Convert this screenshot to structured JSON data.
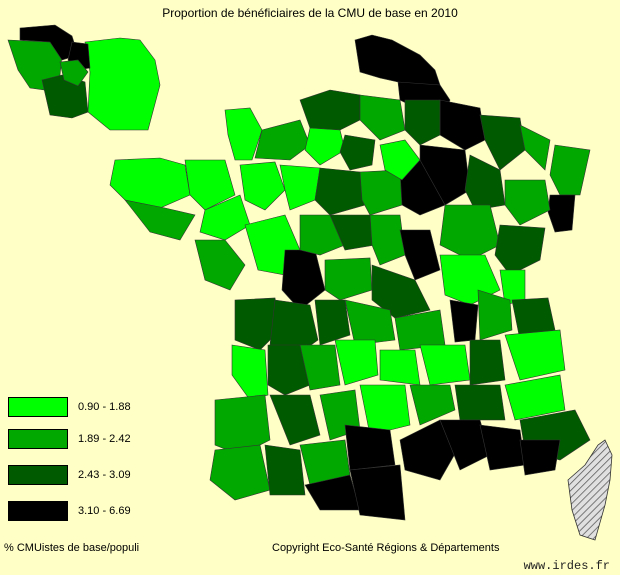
{
  "title": "Proportion de bénéficiaires de la CMU de base en 2010",
  "legend": [
    {
      "label": "0.90 - 1.88",
      "color": "#00ff00"
    },
    {
      "label": "1.89 - 2.42",
      "color": "#00a800"
    },
    {
      "label": "2.43 - 3.09",
      "color": "#005a00"
    },
    {
      "label": "3.10 - 6.69",
      "color": "#000000"
    }
  ],
  "hatch_color": "#c8c8c8",
  "background": "#ffffc6",
  "footer": {
    "indicator": "% CMUistes de base/populi",
    "copyright": "Copyright Eco-Santé Régions & Départements",
    "website": "www.irdes.fr"
  }
}
